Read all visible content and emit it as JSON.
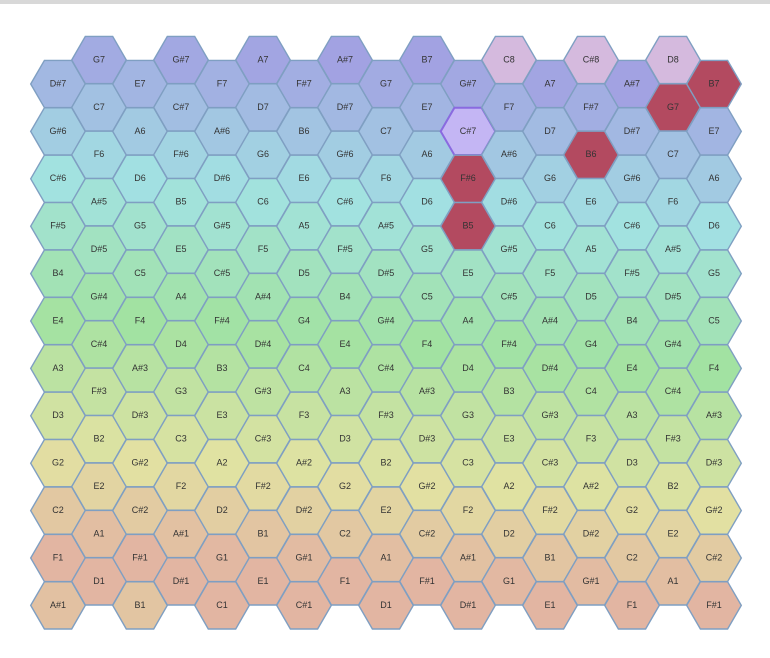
{
  "grid": {
    "columns": [
      [
        "D#7",
        "G#6",
        "C#6",
        "F#5",
        "B4",
        "E4",
        "A3",
        "D3",
        "G2",
        "C2",
        "F1",
        "A#1"
      ],
      [
        "G7",
        "C7",
        "F6",
        "A#5",
        "D#5",
        "G#4",
        "C#4",
        "F#3",
        "B2",
        "E2",
        "A1",
        "D1"
      ],
      [
        "E7",
        "A6",
        "D6",
        "G5",
        "C5",
        "F4",
        "A#3",
        "D#3",
        "G#2",
        "C#2",
        "F#1",
        "B1"
      ],
      [
        "G#7",
        "C#7",
        "F#6",
        "B5",
        "E5",
        "A4",
        "D4",
        "G3",
        "C3",
        "F2",
        "A#1",
        "D#1"
      ],
      [
        "F7",
        "A#6",
        "D#6",
        "G#5",
        "C#5",
        "F#4",
        "B3",
        "E3",
        "A2",
        "D2",
        "G1",
        "C1"
      ],
      [
        "A7",
        "D7",
        "G6",
        "C6",
        "F5",
        "A#4",
        "D#4",
        "G#3",
        "C#3",
        "F#2",
        "B1",
        "E1"
      ],
      [
        "F#7",
        "B6",
        "E6",
        "A5",
        "D5",
        "G4",
        "C4",
        "F3",
        "A#2",
        "D#2",
        "G#1",
        "C#1"
      ],
      [
        "A#7",
        "D#7",
        "G#6",
        "C#6",
        "F#5",
        "B4",
        "E4",
        "A3",
        "D3",
        "G2",
        "C2",
        "F1"
      ],
      [
        "G7",
        "C7",
        "F6",
        "A#5",
        "D#5",
        "G#4",
        "C#4",
        "F#3",
        "B2",
        "E2",
        "A1",
        "D1"
      ],
      [
        "B7",
        "E7",
        "A6",
        "D6",
        "G5",
        "C5",
        "F4",
        "A#3",
        "D#3",
        "G#2",
        "C#2",
        "F#1"
      ],
      [
        "G#7",
        "C#7",
        "F#6",
        "B5",
        "E5",
        "A4",
        "D4",
        "G3",
        "C3",
        "F2",
        "A#1",
        "D#1"
      ],
      [
        "C8",
        "F7",
        "A#6",
        "D#6",
        "G#5",
        "C#5",
        "F#4",
        "B3",
        "E3",
        "A2",
        "D2",
        "G1"
      ],
      [
        "A7",
        "D7",
        "G6",
        "C6",
        "F5",
        "A#4",
        "D#4",
        "G#3",
        "C#3",
        "F#2",
        "B1",
        "E1"
      ],
      [
        "C#8",
        "F#7",
        "B6",
        "E6",
        "A5",
        "D5",
        "G4",
        "C4",
        "F3",
        "A#2",
        "D#2",
        "G#1"
      ],
      [
        "A#7",
        "D#7",
        "G#6",
        "C#6",
        "F#5",
        "B4",
        "E4",
        "A3",
        "D3",
        "G2",
        "C2",
        "F1"
      ],
      [
        "D8",
        "G7",
        "C7",
        "F6",
        "A#5",
        "D#5",
        "G#4",
        "C#4",
        "F#3",
        "B2",
        "E2",
        "A1"
      ],
      [
        "B7",
        "E7",
        "A6",
        "D6",
        "G5",
        "C5",
        "F4",
        "A#3",
        "D#3",
        "G#2",
        "C#2",
        "F#1"
      ]
    ],
    "highlights": [
      {
        "col": 16,
        "row": 0,
        "color": "#b34a60"
      },
      {
        "col": 15,
        "row": 1,
        "color": "#b34a60"
      },
      {
        "col": 13,
        "row": 2,
        "color": "#b34a60"
      },
      {
        "col": 10,
        "row": 2,
        "color": "#b34a60"
      },
      {
        "col": 10,
        "row": 3,
        "color": "#b34a60"
      },
      {
        "col": 10,
        "row": 1,
        "color": "#c4b6f4"
      }
    ]
  }
}
